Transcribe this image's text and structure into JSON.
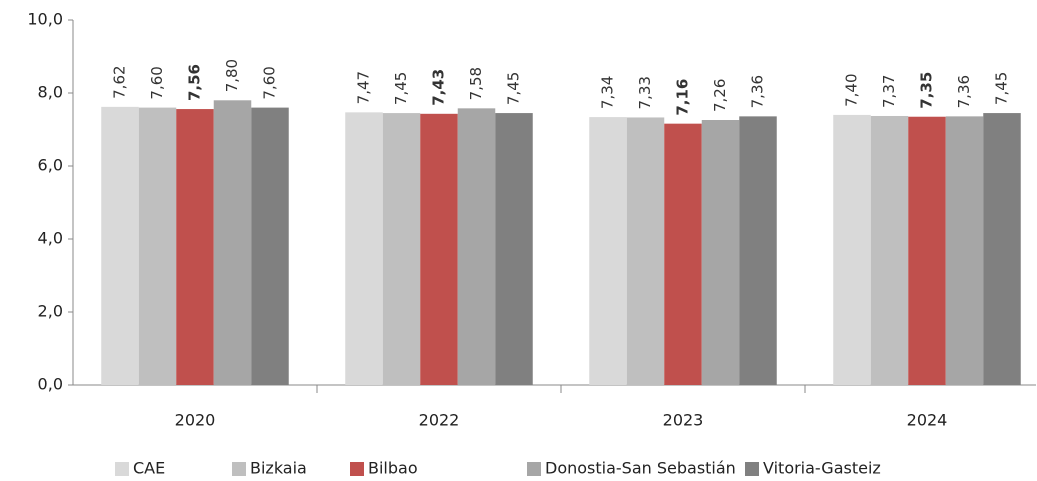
{
  "chart_data": {
    "type": "bar",
    "categories": [
      "2020",
      "2022",
      "2023",
      "2024"
    ],
    "series": [
      {
        "name": "CAE",
        "color": "#d9d9d9",
        "values": [
          7.62,
          7.47,
          7.34,
          7.4
        ],
        "value_labels": [
          "7,62",
          "7,47",
          "7,34",
          "7,40"
        ]
      },
      {
        "name": "Bizkaia",
        "color": "#bfbfbf",
        "values": [
          7.6,
          7.45,
          7.33,
          7.37
        ],
        "value_labels": [
          "7,60",
          "7,45",
          "7,33",
          "7,37"
        ]
      },
      {
        "name": "Bilbao",
        "color": "#c0504d",
        "values": [
          7.56,
          7.43,
          7.16,
          7.35
        ],
        "value_labels": [
          "7,56",
          "7,43",
          "7,16",
          "7,35"
        ],
        "label_bold": true
      },
      {
        "name": "Donostia-San Sebastián",
        "color": "#a6a6a6",
        "values": [
          7.8,
          7.58,
          7.26,
          7.36
        ],
        "value_labels": [
          "7,80",
          "7,58",
          "7,26",
          "7,36"
        ]
      },
      {
        "name": "Vitoria-Gasteiz",
        "color": "#808080",
        "values": [
          7.6,
          7.45,
          7.36,
          7.45
        ],
        "value_labels": [
          "7,60",
          "7,45",
          "7,36",
          "7,45"
        ]
      }
    ],
    "ylim": [
      0,
      10
    ],
    "yticks": [
      {
        "value": 0,
        "label": "0,0"
      },
      {
        "value": 2,
        "label": "2,0"
      },
      {
        "value": 4,
        "label": "4,0"
      },
      {
        "value": 6,
        "label": "6,0"
      },
      {
        "value": 8,
        "label": "8,0"
      },
      {
        "value": 10,
        "label": "10,0"
      }
    ],
    "grid": false,
    "legend": "bottom"
  }
}
